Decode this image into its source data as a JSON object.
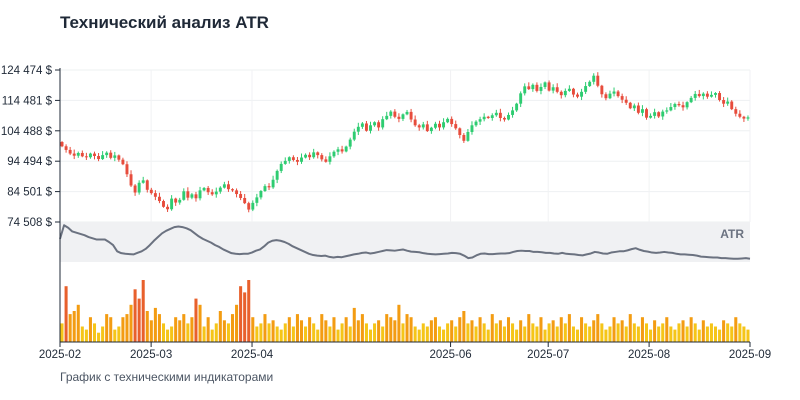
{
  "chart_data": {
    "type": "candlestick",
    "title": "Технический анализ ATR",
    "subtitle": "График с техническими индикаторами",
    "currency_suffix": " $",
    "date_range": [
      "2025-02-01",
      "2025-09-01"
    ],
    "x_ticks": [
      "2025-02",
      "2025-03",
      "2025-04",
      "2025-06",
      "2025-07",
      "2025-08",
      "2025-09"
    ],
    "y_ticks": [
      "74 508 $",
      "84 501 $",
      "94 494 $",
      "104 488 $",
      "114 481 $",
      "124 474 $"
    ],
    "y_tick_values": [
      74508,
      84501,
      94494,
      104488,
      114481,
      124474
    ],
    "ylim": [
      74508,
      124474
    ],
    "grid": true,
    "colors": {
      "up": "#2ecc71",
      "down": "#e74c3c",
      "atr_line": "#6b7280",
      "atr_band": "#e5e7eb",
      "volume_light": "#f5c518",
      "volume_mid": "#f39c12",
      "volume_dark": "#e8602c"
    },
    "price_close": [
      99400,
      98200,
      97000,
      96300,
      97200,
      96100,
      95800,
      97000,
      96200,
      95200,
      96500,
      97300,
      95600,
      96400,
      95000,
      93500,
      90200,
      86500,
      84200,
      87400,
      88200,
      85100,
      84000,
      82800,
      81400,
      79500,
      78700,
      82200,
      80900,
      81800,
      84600,
      82500,
      83600,
      82300,
      84900,
      85700,
      84300,
      83600,
      84500,
      85800,
      86900,
      85300,
      84900,
      83700,
      82400,
      80700,
      78600,
      80800,
      82600,
      84700,
      86300,
      85900,
      88400,
      91300,
      93600,
      94600,
      95800,
      94900,
      94300,
      95700,
      96600,
      95800,
      97400,
      96500,
      95100,
      94300,
      96100,
      97600,
      98400,
      97700,
      99300,
      101600,
      104200,
      105800,
      106900,
      104500,
      106300,
      107300,
      105600,
      108300,
      109400,
      110800,
      109100,
      108400,
      109900,
      110700,
      108200,
      106300,
      105600,
      106600,
      104400,
      105500,
      106800,
      105600,
      107300,
      108400,
      106700,
      105300,
      103100,
      101200,
      104100,
      106300,
      107500,
      108300,
      109100,
      108700,
      109600,
      110400,
      108700,
      108200,
      109700,
      111200,
      113400,
      116800,
      119100,
      118200,
      119600,
      117600,
      118900,
      120400,
      117700,
      118800,
      117300,
      116200,
      117600,
      118300,
      116400,
      115700,
      117300,
      119200,
      120600,
      122600,
      119300,
      116500,
      115200,
      116700,
      117400,
      115900,
      114700,
      113700,
      111900,
      112800,
      110400,
      111600,
      108800,
      109400,
      110600,
      109200,
      110800,
      111200,
      112300,
      113300,
      112900,
      112200,
      113900,
      115300,
      116600,
      115900,
      116700,
      115700,
      116300,
      116900,
      114600,
      113400,
      114100,
      111600,
      110100,
      109100,
      108500,
      108900
    ],
    "atr": [
      3400,
      5600,
      5200,
      4600,
      4400,
      4200,
      4000,
      3700,
      3500,
      3300,
      3300,
      3300,
      2900,
      2400,
      1400,
      1100,
      1000,
      950,
      900,
      1150,
      1400,
      1800,
      2400,
      3100,
      3700,
      4300,
      4700,
      5000,
      5300,
      5400,
      5300,
      5100,
      4800,
      4300,
      3800,
      3400,
      3100,
      2800,
      2400,
      2100,
      1700,
      1400,
      1100,
      1000,
      950,
      1000,
      1000,
      1200,
      1500,
      1700,
      2200,
      2800,
      3100,
      3200,
      3100,
      2900,
      2600,
      2200,
      1900,
      1600,
      1300,
      1000,
      800,
      700,
      650,
      700,
      500,
      400,
      500,
      450,
      600,
      750,
      900,
      1000,
      1150,
      1200,
      1050,
      1150,
      1300,
      1450,
      1600,
      1550,
      1500,
      1600,
      1700,
      1500,
      1350,
      1300,
      1250,
      1100,
      1000,
      950,
      900,
      950,
      1000,
      1050,
      1150,
      1100,
      1000,
      700,
      300,
      400,
      750,
      1000,
      1050,
      950,
      950,
      1000,
      1050,
      1050,
      1100,
      1300,
      1450,
      1500,
      1450,
      1450,
      1300,
      1300,
      1250,
      1150,
      1150,
      1050,
      1000,
      1150,
      1000,
      950,
      900,
      800,
      750,
      900,
      1050,
      1300,
      1200,
      1050,
      1000,
      1200,
      1300,
      1400,
      1400,
      1550,
      1750,
      1900,
      1650,
      1450,
      1350,
      1200,
      1150,
      1200,
      1300,
      1200,
      1150,
      1000,
      900,
      900,
      850,
      800,
      700,
      550,
      500,
      450,
      400,
      400,
      300,
      300,
      250,
      200,
      200,
      250,
      300,
      200
    ],
    "volume": [
      6,
      18,
      9,
      10,
      12,
      5,
      4,
      8,
      6,
      3,
      5,
      9,
      8,
      4,
      5,
      8,
      9,
      12,
      17,
      14,
      20,
      10,
      7,
      11,
      9,
      6,
      4,
      5,
      8,
      7,
      9,
      6,
      8,
      14,
      12,
      5,
      8,
      4,
      6,
      10,
      7,
      6,
      9,
      12,
      18,
      16,
      20,
      8,
      5,
      6,
      9,
      6,
      7,
      5,
      4,
      6,
      8,
      5,
      9,
      7,
      5,
      8,
      6,
      4,
      9,
      7,
      5,
      8,
      4,
      6,
      8,
      5,
      11,
      7,
      9,
      6,
      4,
      6,
      7,
      5,
      9,
      8,
      7,
      12,
      6,
      9,
      8,
      5,
      4,
      6,
      5,
      7,
      8,
      5,
      4,
      6,
      7,
      5,
      8,
      10,
      6,
      7,
      5,
      8,
      6,
      4,
      9,
      6,
      7,
      5,
      8,
      6,
      4,
      7,
      5,
      9,
      6,
      5,
      8,
      4,
      6,
      7,
      5,
      8,
      6,
      9,
      5,
      4,
      8,
      6,
      5,
      7,
      9,
      6,
      4,
      5,
      8,
      6,
      7,
      5,
      9,
      6,
      5,
      8,
      6,
      4,
      7,
      5,
      6,
      8,
      5,
      4,
      6,
      7,
      5,
      8,
      6,
      4,
      7,
      5,
      6,
      5,
      4,
      7,
      6,
      5,
      8,
      6,
      5,
      4
    ]
  }
}
